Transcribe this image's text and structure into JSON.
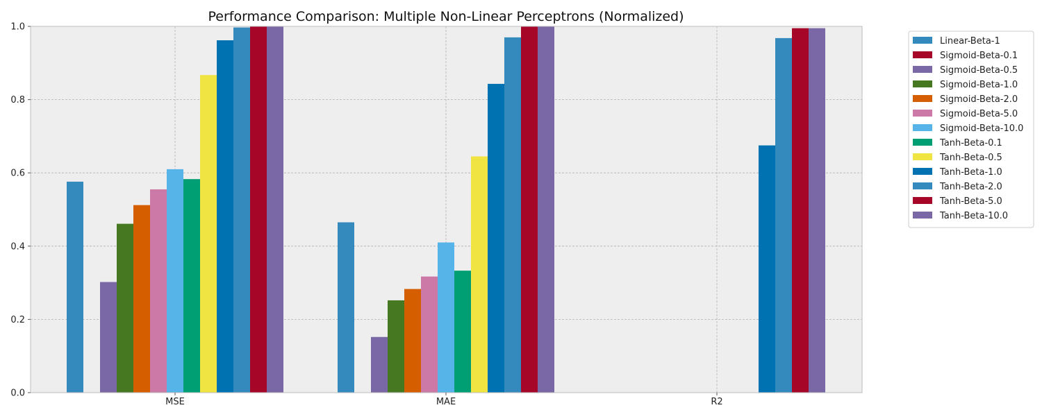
{
  "chart_data": {
    "type": "bar",
    "title": "Performance Comparison: Multiple Non-Linear Perceptrons (Normalized)",
    "xlabel": "",
    "ylabel": "",
    "categories": [
      "MSE",
      "MAE",
      "R2"
    ],
    "ylim": [
      0,
      1.0
    ],
    "yticks": [
      "0.0",
      "0.2",
      "0.4",
      "0.6",
      "0.8",
      "1.0"
    ],
    "grid": true,
    "legend_position": "outside-top-right",
    "series": [
      {
        "name": "Linear-Beta-1",
        "color": "#348abd",
        "values": [
          0.576,
          0.465,
          0.0
        ]
      },
      {
        "name": "Sigmoid-Beta-0.1",
        "color": "#a60628",
        "values": [
          0.0,
          0.0,
          0.0
        ]
      },
      {
        "name": "Sigmoid-Beta-0.5",
        "color": "#7a68a6",
        "values": [
          0.302,
          0.152,
          0.0
        ]
      },
      {
        "name": "Sigmoid-Beta-1.0",
        "color": "#467821",
        "values": [
          0.461,
          0.252,
          0.0
        ]
      },
      {
        "name": "Sigmoid-Beta-2.0",
        "color": "#d55e00",
        "values": [
          0.512,
          0.283,
          0.0
        ]
      },
      {
        "name": "Sigmoid-Beta-5.0",
        "color": "#cc79a7",
        "values": [
          0.555,
          0.317,
          0.0
        ]
      },
      {
        "name": "Sigmoid-Beta-10.0",
        "color": "#56b4e9",
        "values": [
          0.61,
          0.41,
          0.0
        ]
      },
      {
        "name": "Tanh-Beta-0.1",
        "color": "#009e73",
        "values": [
          0.583,
          0.333,
          0.0
        ]
      },
      {
        "name": "Tanh-Beta-0.5",
        "color": "#f0e442",
        "values": [
          0.867,
          0.645,
          0.0
        ]
      },
      {
        "name": "Tanh-Beta-1.0",
        "color": "#0072b2",
        "values": [
          0.962,
          0.843,
          0.675
        ]
      },
      {
        "name": "Tanh-Beta-2.0",
        "color": "#348abd",
        "values": [
          0.997,
          0.97,
          0.968
        ]
      },
      {
        "name": "Tanh-Beta-5.0",
        "color": "#a60628",
        "values": [
          1.0,
          1.0,
          0.995
        ]
      },
      {
        "name": "Tanh-Beta-10.0",
        "color": "#7a68a6",
        "values": [
          1.0,
          1.0,
          0.995
        ]
      }
    ]
  }
}
